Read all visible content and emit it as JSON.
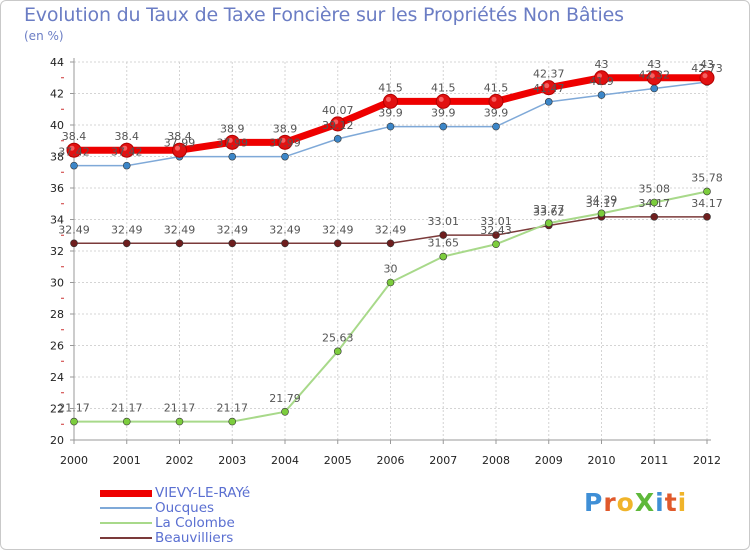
{
  "title": "Evolution du Taux de Taxe Foncière sur les Propriétés Non Bâties",
  "unit_label": "(en %)",
  "logo": {
    "text": "ProXiti",
    "letters": [
      {
        "ch": "P",
        "color": "#3f8fd6"
      },
      {
        "ch": "r",
        "color": "#e0592b"
      },
      {
        "ch": "o",
        "color": "#f0b42a"
      },
      {
        "ch": "X",
        "color": "#5fb83a"
      },
      {
        "ch": "i",
        "color": "#3f8fd6"
      },
      {
        "ch": "t",
        "color": "#e0592b"
      },
      {
        "ch": "i",
        "color": "#f0b42a"
      }
    ]
  },
  "chart_data": {
    "type": "line",
    "x": [
      "2000",
      "2001",
      "2002",
      "2003",
      "2004",
      "2005",
      "2006",
      "2007",
      "2008",
      "2009",
      "2010",
      "2011",
      "2012"
    ],
    "ylim": [
      20,
      44
    ],
    "yticks": [
      20,
      22,
      24,
      26,
      28,
      30,
      32,
      34,
      36,
      38,
      40,
      42,
      44
    ],
    "grid": true,
    "legend_position": "bottom-left",
    "series": [
      {
        "name": "VIEVY-LE-RAYé",
        "color": "#ee0000",
        "width": 7,
        "marker_radius": 7,
        "values": [
          38.4,
          38.4,
          38.4,
          38.9,
          38.9,
          40.07,
          41.5,
          41.5,
          41.5,
          42.37,
          43,
          43,
          43
        ],
        "labels": [
          "38.4",
          "38.4",
          "38.4",
          "38.9",
          "38.9",
          "40.07",
          "41.5",
          "41.5",
          "41.5",
          "42.37",
          "43",
          "43",
          "43"
        ]
      },
      {
        "name": "Oucques",
        "color": "#7fa9d8",
        "width": 1.5,
        "marker_radius": 3.5,
        "marker_color": "#3c86c8",
        "values": [
          37.42,
          37.42,
          37.99,
          37.99,
          37.99,
          39.12,
          39.9,
          39.9,
          39.9,
          41.47,
          41.9,
          42.32,
          42.73
        ],
        "labels": [
          "37.42",
          "37.42",
          "37.99",
          "37.99",
          "37.99",
          "39.12",
          "39.9",
          "39.9",
          "39.9",
          "41.47",
          "41.9",
          "42.32",
          "42.73"
        ]
      },
      {
        "name": "La Colombe",
        "color": "#a8d98a",
        "width": 2,
        "marker_radius": 3.5,
        "marker_color": "#7ccd3d",
        "values": [
          21.17,
          21.17,
          21.17,
          21.17,
          21.79,
          25.63,
          30,
          31.65,
          32.43,
          33.77,
          34.39,
          35.08,
          35.78
        ],
        "labels": [
          "21.17",
          "21.17",
          "21.17",
          "21.17",
          "21.79",
          "25.63",
          "30",
          "31.65",
          "32.43",
          "33.77",
          "34.39",
          "35.08",
          "35.78"
        ]
      },
      {
        "name": "Beauvilliers",
        "color": "#7b3a3a",
        "width": 1.5,
        "marker_radius": 3.5,
        "marker_color": "#6e1e1e",
        "values": [
          32.49,
          32.49,
          32.49,
          32.49,
          32.49,
          32.49,
          32.49,
          33.01,
          33.01,
          33.62,
          34.17,
          34.17,
          34.17
        ],
        "labels": [
          "32.49",
          "32.49",
          "32.49",
          "32.49",
          "32.49",
          "32.49",
          "32.49",
          "33.01",
          "33.01",
          "33.62",
          "34.17",
          "34.17",
          "34.17"
        ]
      }
    ]
  }
}
